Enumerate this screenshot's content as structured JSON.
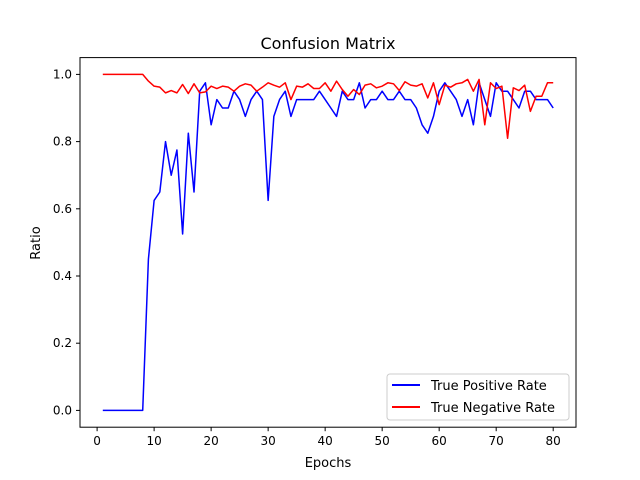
{
  "chart_data": {
    "type": "line",
    "title": "Confusion Matrix",
    "xlabel": "Epochs",
    "ylabel": "Ratio",
    "xlim": [
      -3,
      84
    ],
    "ylim": [
      -0.05,
      1.05
    ],
    "xticks": [
      0,
      10,
      20,
      30,
      40,
      50,
      60,
      70,
      80
    ],
    "yticks": [
      0.0,
      0.2,
      0.4,
      0.6,
      0.8,
      1.0
    ],
    "grid": false,
    "legend_position": "lower-right",
    "x": [
      1,
      2,
      3,
      4,
      5,
      6,
      7,
      8,
      9,
      10,
      11,
      12,
      13,
      14,
      15,
      16,
      17,
      18,
      19,
      20,
      21,
      22,
      23,
      24,
      25,
      26,
      27,
      28,
      29,
      30,
      31,
      32,
      33,
      34,
      35,
      36,
      37,
      38,
      39,
      40,
      41,
      42,
      43,
      44,
      45,
      46,
      47,
      48,
      49,
      50,
      51,
      52,
      53,
      54,
      55,
      56,
      57,
      58,
      59,
      60,
      61,
      62,
      63,
      64,
      65,
      66,
      67,
      68,
      69,
      70,
      71,
      72,
      73,
      74,
      75,
      76,
      77,
      78,
      79,
      80
    ],
    "series": [
      {
        "name": "True Positive Rate",
        "color": "#0000ff",
        "values": [
          0,
          0,
          0,
          0,
          0,
          0,
          0,
          0,
          0.45,
          0.625,
          0.65,
          0.8,
          0.7,
          0.775,
          0.525,
          0.825,
          0.65,
          0.95,
          0.975,
          0.85,
          0.925,
          0.9,
          0.9,
          0.95,
          0.925,
          0.875,
          0.925,
          0.95,
          0.925,
          0.625,
          0.875,
          0.925,
          0.95,
          0.875,
          0.925,
          0.925,
          0.925,
          0.925,
          0.95,
          0.925,
          0.9,
          0.875,
          0.95,
          0.925,
          0.925,
          0.975,
          0.9,
          0.925,
          0.925,
          0.95,
          0.925,
          0.925,
          0.95,
          0.925,
          0.925,
          0.9,
          0.85,
          0.825,
          0.875,
          0.95,
          0.975,
          0.95,
          0.925,
          0.875,
          0.925,
          0.85,
          0.975,
          0.925,
          0.875,
          0.975,
          0.95,
          0.95,
          0.925,
          0.9,
          0.95,
          0.95,
          0.925,
          0.925,
          0.925,
          0.9
        ]
      },
      {
        "name": "True Negative Rate",
        "color": "#ff0000",
        "values": [
          1.0,
          1.0,
          1.0,
          1.0,
          1.0,
          1.0,
          1.0,
          1.0,
          0.98,
          0.965,
          0.962,
          0.945,
          0.952,
          0.945,
          0.97,
          0.943,
          0.972,
          0.945,
          0.948,
          0.965,
          0.958,
          0.965,
          0.962,
          0.95,
          0.965,
          0.972,
          0.968,
          0.95,
          0.962,
          0.975,
          0.968,
          0.962,
          0.975,
          0.925,
          0.965,
          0.962,
          0.972,
          0.958,
          0.958,
          0.975,
          0.95,
          0.98,
          0.955,
          0.935,
          0.955,
          0.94,
          0.968,
          0.972,
          0.96,
          0.965,
          0.975,
          0.972,
          0.952,
          0.978,
          0.968,
          0.965,
          0.972,
          0.93,
          0.975,
          0.91,
          0.968,
          0.962,
          0.972,
          0.975,
          0.985,
          0.95,
          0.985,
          0.85,
          0.975,
          0.958,
          0.965,
          0.81,
          0.96,
          0.952,
          0.968,
          0.89,
          0.935,
          0.935,
          0.975,
          0.975
        ]
      }
    ]
  }
}
